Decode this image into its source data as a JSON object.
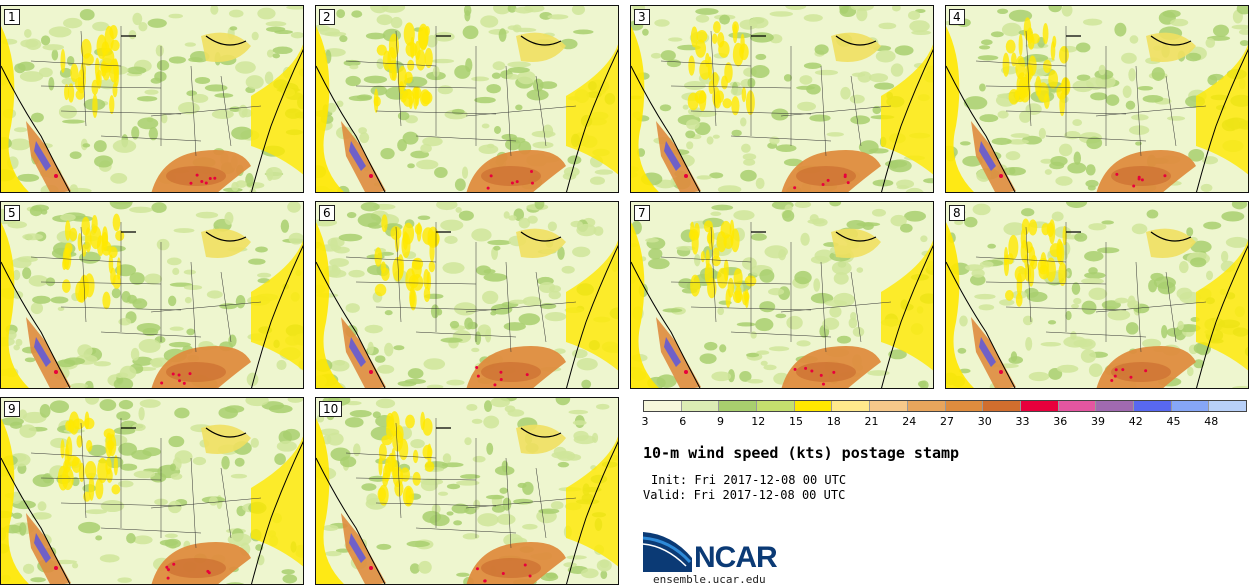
{
  "panels": [
    "1",
    "2",
    "3",
    "4",
    "5",
    "6",
    "7",
    "8",
    "9",
    "10"
  ],
  "colorbar": {
    "colors": [
      "#f7f7dc",
      "#dcecb4",
      "#a8cf6e",
      "#c4df6e",
      "#ffe800",
      "#ffe98c",
      "#f6c88a",
      "#e8a55c",
      "#de8c3e",
      "#d06e2e",
      "#e8003c",
      "#e456a0",
      "#a06ab0",
      "#5868f0",
      "#86a6f6",
      "#b8d0f8"
    ],
    "ticks": [
      "3",
      "6",
      "9",
      "12",
      "15",
      "18",
      "21",
      "24",
      "27",
      "30",
      "33",
      "36",
      "39",
      "42",
      "45",
      "48"
    ]
  },
  "title": "10-m wind speed (kts) postage stamp",
  "init_line": "Init: Fri 2017-12-08 00 UTC",
  "valid_line": "Valid: Fri 2017-12-08 00 UTC",
  "logo": {
    "text": "NCAR",
    "color": "#0b3a75",
    "accent": "#2e8ad8"
  },
  "site": "ensemble.ucar.edu",
  "map_colors": {
    "base": "#eef6cf",
    "green": "#a8cf6e",
    "lightgreen": "#cfe59a",
    "yellow": "#ffe800",
    "orange": "#de8c3e",
    "darkorange": "#cc6f30",
    "red": "#e8003c",
    "purple": "#7060c8",
    "lake": "#f0e060"
  }
}
